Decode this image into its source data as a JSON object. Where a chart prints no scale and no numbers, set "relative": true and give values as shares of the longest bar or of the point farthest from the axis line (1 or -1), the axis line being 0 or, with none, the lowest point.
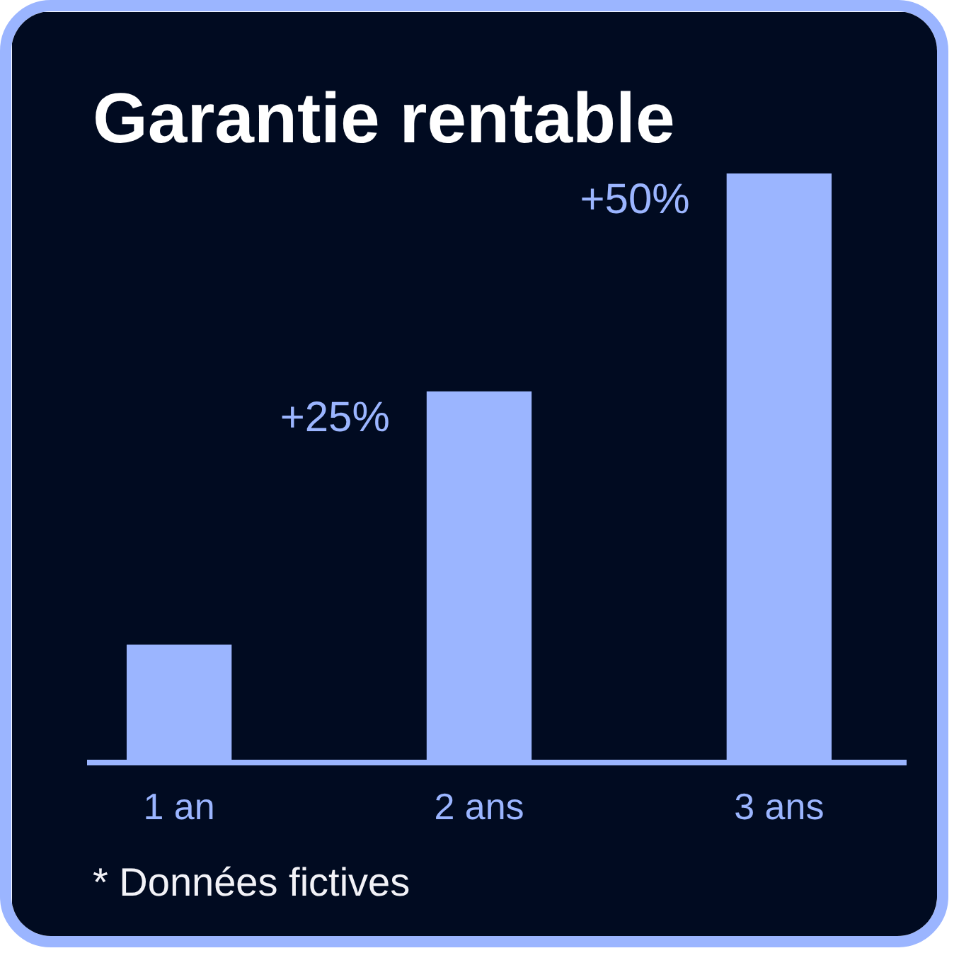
{
  "chart_data": {
    "type": "bar",
    "title": "Garantie rentable",
    "categories": [
      "1 an",
      "2 ans",
      "3 ans"
    ],
    "values": [
      0.2,
      0.63,
      1
    ],
    "relative": true,
    "color": "#9bb5ff",
    "annotations": [
      {
        "text": "+25%",
        "x": "2 ans",
        "y": 0.63
      },
      {
        "text": "+50%",
        "x": "3 ans",
        "y": 1
      },
      "* Données fictives"
    ]
  }
}
